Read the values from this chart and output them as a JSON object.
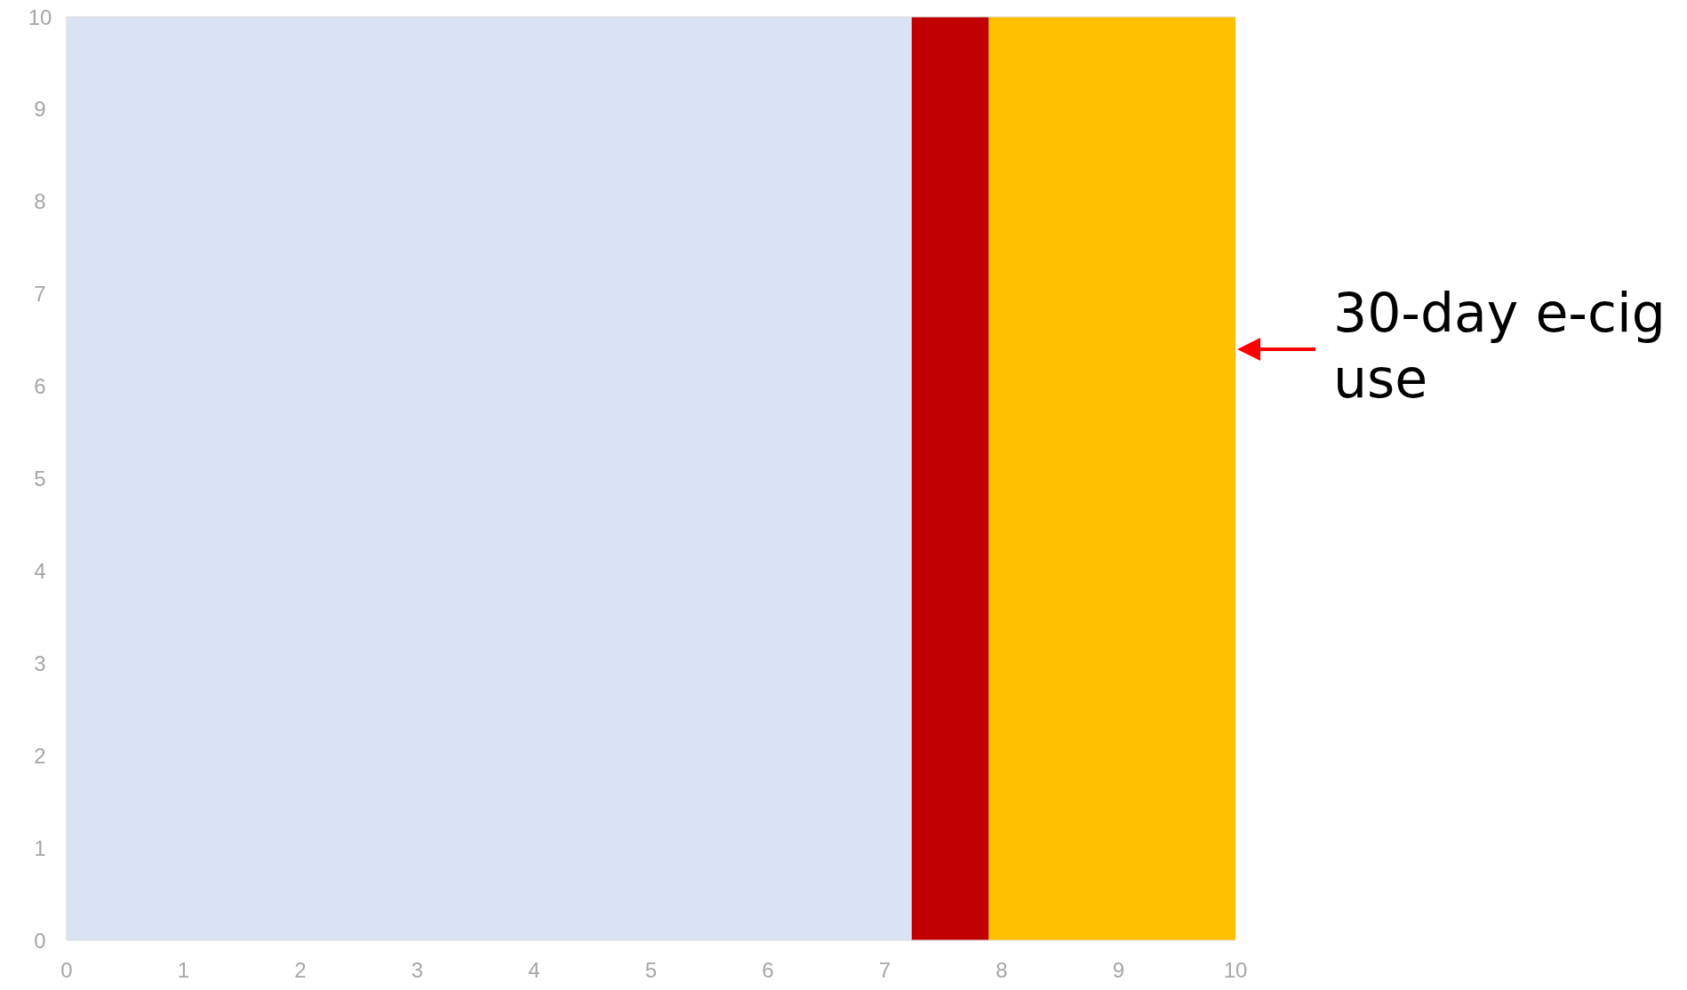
{
  "chart_data": {
    "type": "area",
    "xlim": [
      0,
      10
    ],
    "ylim": [
      0,
      10
    ],
    "xticks": [
      0,
      1,
      2,
      3,
      4,
      5,
      6,
      7,
      8,
      9,
      10
    ],
    "yticks": [
      0,
      1,
      2,
      3,
      4,
      5,
      6,
      7,
      8,
      9,
      10
    ],
    "grid": false,
    "series": [
      {
        "color": "#dae3f3",
        "x": [
          0,
          7.23
        ],
        "values": [
          10,
          10
        ]
      },
      {
        "color": "#c00000",
        "x": [
          7.23,
          7.89
        ],
        "values": [
          10,
          10
        ]
      },
      {
        "color": "#ffc000",
        "x": [
          7.89,
          10
        ],
        "values": [
          10,
          10
        ]
      }
    ],
    "annotations": [
      {
        "text": "30-day e-cig use",
        "x": 10,
        "y": 6.4
      }
    ]
  }
}
